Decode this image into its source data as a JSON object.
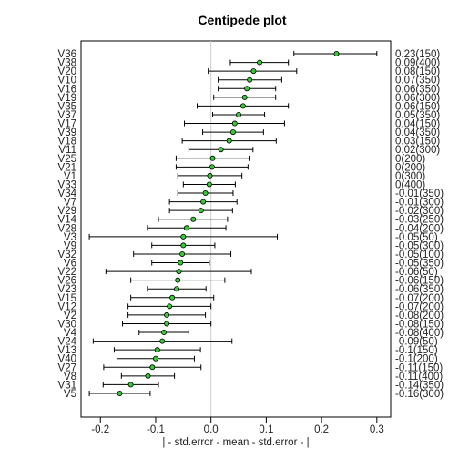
{
  "chart_data": {
    "type": "scatter",
    "title": "Centipede plot",
    "xlabel": "| - std.error - mean - std.error - |",
    "ylabel": "",
    "xlim": [
      -0.235,
      0.325
    ],
    "xticks": [
      -0.2,
      -0.1,
      0.0,
      0.1,
      0.2,
      0.3
    ],
    "xtick_labels": [
      "-0.2",
      "-0.1",
      "0.0",
      "0.1",
      "0.2",
      "0.3"
    ],
    "reference_line_x": 0,
    "grid": false,
    "legend": "none",
    "point_color": "#33cc33",
    "rows": [
      {
        "name": "V36",
        "mean": 0.227,
        "low": 0.15,
        "high": 0.3,
        "label": "0.23(150)"
      },
      {
        "name": "V38",
        "mean": 0.088,
        "low": 0.035,
        "high": 0.14,
        "label": "0.09(400)"
      },
      {
        "name": "V20",
        "mean": 0.077,
        "low": -0.005,
        "high": 0.155,
        "label": "0.08(150)"
      },
      {
        "name": "V10",
        "mean": 0.07,
        "low": 0.013,
        "high": 0.128,
        "label": "0.07(350)"
      },
      {
        "name": "V16",
        "mean": 0.065,
        "low": 0.013,
        "high": 0.117,
        "label": "0.06(350)"
      },
      {
        "name": "V19",
        "mean": 0.061,
        "low": 0.005,
        "high": 0.117,
        "label": "0.06(300)"
      },
      {
        "name": "V35",
        "mean": 0.058,
        "low": -0.025,
        "high": 0.14,
        "label": "0.06(150)"
      },
      {
        "name": "V37",
        "mean": 0.05,
        "low": 0.003,
        "high": 0.097,
        "label": "0.05(350)"
      },
      {
        "name": "V17",
        "mean": 0.043,
        "low": -0.048,
        "high": 0.133,
        "label": "0.04(150)"
      },
      {
        "name": "V39",
        "mean": 0.04,
        "low": -0.015,
        "high": 0.095,
        "label": "0.04(350)"
      },
      {
        "name": "V18",
        "mean": 0.033,
        "low": -0.052,
        "high": 0.118,
        "label": "0.03(150)"
      },
      {
        "name": "V11",
        "mean": 0.018,
        "low": -0.04,
        "high": 0.076,
        "label": "0.02(300)"
      },
      {
        "name": "V25",
        "mean": 0.003,
        "low": -0.063,
        "high": 0.069,
        "label": "0(200)"
      },
      {
        "name": "V21",
        "mean": 0.002,
        "low": -0.063,
        "high": 0.067,
        "label": "0(200)"
      },
      {
        "name": "V1",
        "mean": -0.002,
        "low": -0.06,
        "high": 0.056,
        "label": "0(300)"
      },
      {
        "name": "V33",
        "mean": -0.003,
        "low": -0.05,
        "high": 0.044,
        "label": "0(400)"
      },
      {
        "name": "V34",
        "mean": -0.01,
        "low": -0.06,
        "high": 0.04,
        "label": "-0.01(350)"
      },
      {
        "name": "V7",
        "mean": -0.014,
        "low": -0.075,
        "high": 0.047,
        "label": "-0.01(300)"
      },
      {
        "name": "V29",
        "mean": -0.018,
        "low": -0.075,
        "high": 0.039,
        "label": "-0.02(300)"
      },
      {
        "name": "V14",
        "mean": -0.032,
        "low": -0.095,
        "high": 0.03,
        "label": "-0.03(250)"
      },
      {
        "name": "V28",
        "mean": -0.044,
        "low": -0.115,
        "high": 0.027,
        "label": "-0.04(200)"
      },
      {
        "name": "V3",
        "mean": -0.05,
        "low": -0.22,
        "high": 0.12,
        "label": "-0.05(50)"
      },
      {
        "name": "V9",
        "mean": -0.05,
        "low": -0.107,
        "high": 0.007,
        "label": "-0.05(300)"
      },
      {
        "name": "V32",
        "mean": -0.052,
        "low": -0.14,
        "high": 0.036,
        "label": "-0.05(100)"
      },
      {
        "name": "V6",
        "mean": -0.055,
        "low": -0.107,
        "high": -0.003,
        "label": "-0.05(350)"
      },
      {
        "name": "V22",
        "mean": -0.058,
        "low": -0.19,
        "high": 0.073,
        "label": "-0.06(50)"
      },
      {
        "name": "V26",
        "mean": -0.06,
        "low": -0.145,
        "high": 0.025,
        "label": "-0.06(150)"
      },
      {
        "name": "V23",
        "mean": -0.062,
        "low": -0.115,
        "high": -0.009,
        "label": "-0.06(350)"
      },
      {
        "name": "V15",
        "mean": -0.07,
        "low": -0.145,
        "high": 0.005,
        "label": "-0.07(200)"
      },
      {
        "name": "V12",
        "mean": -0.075,
        "low": -0.15,
        "high": 0.0,
        "label": "-0.07(200)"
      },
      {
        "name": "V2",
        "mean": -0.08,
        "low": -0.15,
        "high": -0.01,
        "label": "-0.08(200)"
      },
      {
        "name": "V30",
        "mean": -0.08,
        "low": -0.16,
        "high": 0.0,
        "label": "-0.08(150)"
      },
      {
        "name": "V4",
        "mean": -0.085,
        "low": -0.13,
        "high": -0.04,
        "label": "-0.08(400)"
      },
      {
        "name": "V24",
        "mean": -0.088,
        "low": -0.213,
        "high": 0.038,
        "label": "-0.09(50)"
      },
      {
        "name": "V13",
        "mean": -0.097,
        "low": -0.175,
        "high": -0.019,
        "label": "-0.1(150)"
      },
      {
        "name": "V40",
        "mean": -0.1,
        "low": -0.17,
        "high": -0.03,
        "label": "-0.1(200)"
      },
      {
        "name": "V27",
        "mean": -0.106,
        "low": -0.194,
        "high": -0.018,
        "label": "-0.11(150)"
      },
      {
        "name": "V8",
        "mean": -0.114,
        "low": -0.162,
        "high": -0.066,
        "label": "-0.11(400)"
      },
      {
        "name": "V31",
        "mean": -0.145,
        "low": -0.195,
        "high": -0.095,
        "label": "-0.14(350)"
      },
      {
        "name": "V5",
        "mean": -0.165,
        "low": -0.22,
        "high": -0.11,
        "label": "-0.16(300)"
      }
    ]
  }
}
